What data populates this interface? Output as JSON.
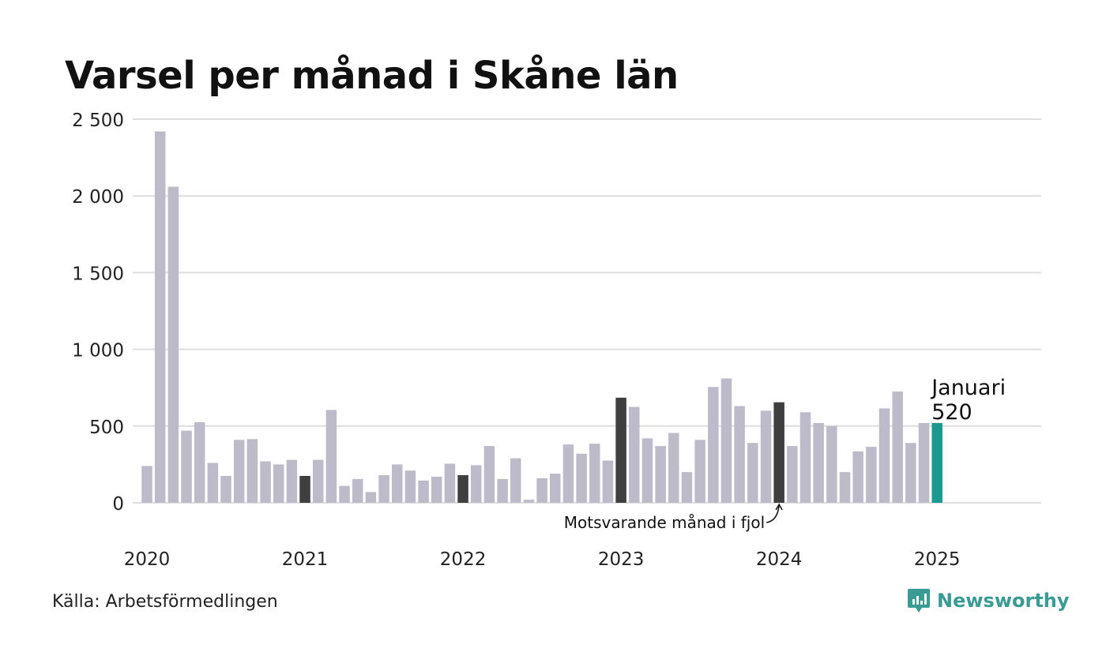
{
  "title": "Varsel per månad i Skåne län",
  "source": "Källa: Arbetsförmedlingen",
  "logo": {
    "text": "Newsworthy",
    "icon": "newsworthy-chart-bubble-icon"
  },
  "colors": {
    "bar": "#bdbbca",
    "highlight_same_month": "#3f3f3f",
    "current": "#1a9a8e",
    "grid": "#dedede",
    "logo": "#3a9a94"
  },
  "chart_data": {
    "type": "bar",
    "title": "Varsel per månad i Skåne län",
    "xlabel": "",
    "ylabel": "",
    "ylim": [
      0,
      2500
    ],
    "yticks": [
      0,
      500,
      1000,
      1500,
      2000,
      2500
    ],
    "ytick_labels": [
      "0",
      "500",
      "1 000",
      "1 500",
      "2 000",
      "2 500"
    ],
    "xtick_labels": [
      "2020",
      "2021",
      "2022",
      "2023",
      "2024",
      "2025"
    ],
    "grid": true,
    "categories": [
      "2020-01",
      "2020-02",
      "2020-03",
      "2020-04",
      "2020-05",
      "2020-06",
      "2020-07",
      "2020-08",
      "2020-09",
      "2020-10",
      "2020-11",
      "2020-12",
      "2021-01",
      "2021-02",
      "2021-03",
      "2021-04",
      "2021-05",
      "2021-06",
      "2021-07",
      "2021-08",
      "2021-09",
      "2021-10",
      "2021-11",
      "2021-12",
      "2022-01",
      "2022-02",
      "2022-03",
      "2022-04",
      "2022-05",
      "2022-06",
      "2022-07",
      "2022-08",
      "2022-09",
      "2022-10",
      "2022-11",
      "2022-12",
      "2023-01",
      "2023-02",
      "2023-03",
      "2023-04",
      "2023-05",
      "2023-06",
      "2023-07",
      "2023-08",
      "2023-09",
      "2023-10",
      "2023-11",
      "2023-12",
      "2024-01",
      "2024-02",
      "2024-03",
      "2024-04",
      "2024-05",
      "2024-06",
      "2024-07",
      "2024-08",
      "2024-09",
      "2024-10",
      "2024-11",
      "2024-12",
      "2025-01"
    ],
    "values": [
      240,
      2420,
      2060,
      470,
      525,
      260,
      175,
      410,
      415,
      270,
      250,
      280,
      175,
      280,
      605,
      110,
      155,
      70,
      180,
      250,
      210,
      145,
      170,
      255,
      180,
      245,
      370,
      155,
      290,
      20,
      160,
      190,
      380,
      320,
      385,
      275,
      685,
      625,
      420,
      370,
      455,
      200,
      410,
      755,
      810,
      630,
      390,
      600,
      655,
      370,
      590,
      520,
      500,
      200,
      335,
      365,
      615,
      725,
      390,
      520,
      520
    ],
    "highlighted_same_month_indices": [
      12,
      24,
      36,
      48
    ],
    "current_index": 60,
    "annotations": [
      {
        "text": "Januari",
        "value_text": "520",
        "target_index": 60
      },
      {
        "text": "Motsvarande månad i fjol",
        "target_index": 48
      }
    ]
  }
}
